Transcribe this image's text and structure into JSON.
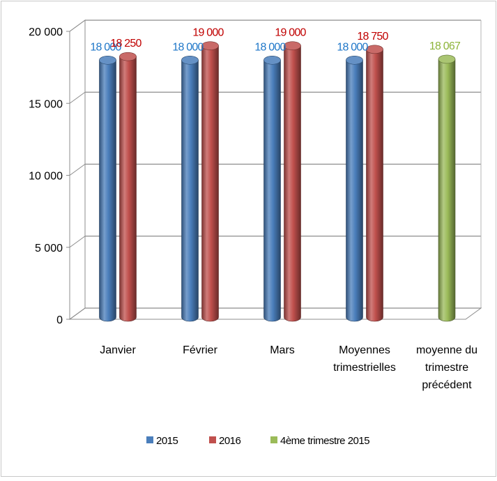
{
  "chart_data": {
    "type": "bar",
    "categories": [
      [
        "Janvier"
      ],
      [
        "Février"
      ],
      [
        "Mars"
      ],
      [
        "Moyennes",
        "trimestrielles"
      ],
      [
        "moyenne du",
        "trimestre",
        "précédent"
      ]
    ],
    "series": [
      {
        "name": "2015",
        "color": "#4a7ebb",
        "values": [
          18000,
          18000,
          18000,
          18000,
          null
        ],
        "labels": [
          "18 000",
          "18 000",
          "18 000",
          "18 000",
          ""
        ],
        "label_color": "#1f77c8"
      },
      {
        "name": "2016",
        "color": "#c0504d",
        "values": [
          18250,
          19000,
          19000,
          18750,
          null
        ],
        "labels": [
          "18 250",
          "19 000",
          "19 000",
          "18 750",
          ""
        ],
        "label_color": "#c00000"
      },
      {
        "name": "4ème trimestre 2015",
        "color": "#9bbb59",
        "values": [
          null,
          null,
          null,
          null,
          18067
        ],
        "labels": [
          "",
          "",
          "",
          "",
          "18 067"
        ],
        "label_color": "#8db43a"
      }
    ],
    "yticks": [
      {
        "value": 0,
        "label": "0"
      },
      {
        "value": 5000,
        "label": "5 000"
      },
      {
        "value": 10000,
        "label": "10 000"
      },
      {
        "value": 15000,
        "label": "15 000"
      },
      {
        "value": 20000,
        "label": "20 000"
      }
    ],
    "ylim": [
      0,
      20000
    ],
    "grid": true,
    "legend_position": "bottom"
  }
}
